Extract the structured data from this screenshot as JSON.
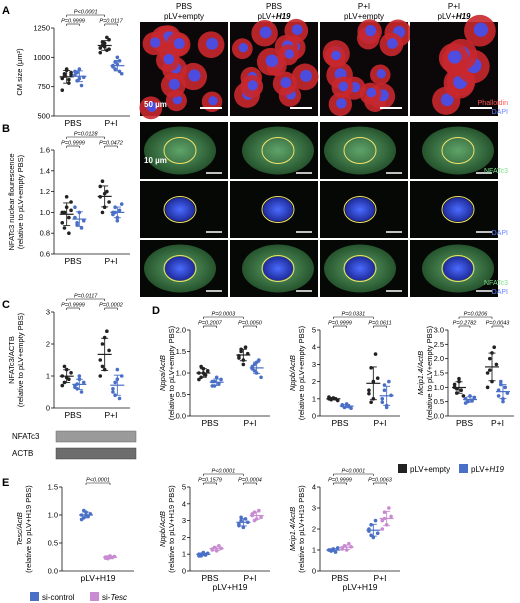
{
  "panel_letters": {
    "A": "A",
    "B": "B",
    "C": "C",
    "D": "D",
    "E": "E"
  },
  "micro_cols": [
    {
      "l1": "PBS",
      "l2": "pLV+empty",
      "l2i": ""
    },
    {
      "l1": "PBS",
      "l2": "pLV+",
      "l2i": "H19"
    },
    {
      "l1": "P+I",
      "l2": "pLV+empty",
      "l2i": ""
    },
    {
      "l1": "P+I",
      "l2": "pLV+",
      "l2i": "H19"
    }
  ],
  "micro_labels": {
    "scale_a": "50 µm",
    "scale_b": "10 µm",
    "phalloidin": "Phalloidin",
    "dapi": "DAPI",
    "nfatc3": "NFATc3"
  },
  "legend_D": [
    {
      "label": "pLV+empty",
      "italic": "",
      "color": "#222222"
    },
    {
      "label": "pLV+",
      "italic": "H19",
      "color": "#4a6fc6"
    }
  ],
  "legend_E": [
    {
      "label": "si-control",
      "italic": "",
      "color": "#4a6fc6"
    },
    {
      "label": "si-",
      "italic": "Tesc",
      "color": "#c98bd1"
    }
  ],
  "western": {
    "bands": [
      "NFATc3",
      "ACTB"
    ]
  },
  "colors": {
    "black": "#222222",
    "blue": "#4a6fc6",
    "purple": "#c98bd1",
    "actin_red": "#d8383c",
    "nfat_green": "#2f7a3a",
    "dapi_blue": "#2a3fbf"
  },
  "chart_data": [
    {
      "id": "A",
      "type": "scatter",
      "ylabel": "CM size (μm²)",
      "yticks": [
        500,
        750,
        1000,
        1250
      ],
      "ylim": [
        500,
        1250
      ],
      "groups": [
        "PBS",
        "P+I"
      ],
      "series": [
        {
          "color": "black",
          "values": [
            [
              820,
              860,
              900,
              780,
              870,
              720,
              840,
              890,
              810,
              850
            ],
            [
              1080,
              1100,
              1120,
              1060,
              1150,
              1040,
              1130,
              1090,
              1170,
              1070
            ]
          ]
        },
        {
          "color": "blue",
          "values": [
            [
              850,
              870,
              900,
              760,
              830,
              880,
              800,
              820
            ],
            [
              920,
              960,
              1000,
              880,
              860,
              930,
              900,
              940,
              970
            ]
          ]
        }
      ],
      "pvals": [
        {
          "text": "P<0.0001",
          "a": 0,
          "b": 2,
          "lev": 1
        },
        {
          "text": "P=0.9999",
          "a": 0,
          "b": 1,
          "lev": 0
        },
        {
          "text": "P=0.0117",
          "a": 2,
          "b": 3,
          "lev": 0
        }
      ]
    },
    {
      "id": "B",
      "type": "scatter",
      "ylabel": "NFATc3 nuclear flourescence",
      "ylabel2": "(relative to pLV+empty PBS)",
      "yticks": [
        0.6,
        0.8,
        1.0,
        1.2,
        1.4,
        1.6
      ],
      "ylim": [
        0.6,
        1.6
      ],
      "groups": [
        "PBS",
        "P+I"
      ],
      "series": [
        {
          "color": "black",
          "values": [
            [
              1.0,
              0.85,
              1.05,
              0.95,
              1.1,
              0.9,
              1.0,
              1.15,
              0.8,
              1.02
            ],
            [
              1.15,
              1.3,
              1.05,
              1.2,
              1.1,
              1.25,
              1.0,
              1.18
            ]
          ]
        },
        {
          "color": "blue",
          "values": [
            [
              0.95,
              0.9,
              1.0,
              0.85,
              0.92,
              1.05,
              0.88
            ],
            [
              1.0,
              1.05,
              0.95,
              1.02,
              1.08,
              0.98,
              1.0,
              0.92
            ]
          ]
        }
      ],
      "pvals": [
        {
          "text": "P=0.0128",
          "a": 0,
          "b": 2,
          "lev": 1
        },
        {
          "text": "P=0.9999",
          "a": 0,
          "b": 1,
          "lev": 0
        },
        {
          "text": "P=0.0472",
          "a": 2,
          "b": 3,
          "lev": 0
        }
      ]
    },
    {
      "id": "C",
      "type": "scatter",
      "ylabel": "NFATc3/ACTB",
      "ylabel2": "(relative to pLV+empty PBS)",
      "yticks": [
        0,
        1,
        2,
        3
      ],
      "ylim": [
        0,
        3
      ],
      "groups": [
        "PBS",
        "P+I"
      ],
      "series": [
        {
          "color": "black",
          "values": [
            [
              1.0,
              0.8,
              1.2,
              0.9,
              1.1,
              0.7,
              1.3,
              0.95
            ],
            [
              1.5,
              2.0,
              1.2,
              2.4,
              1.8,
              1.0,
              1.3,
              2.2
            ]
          ]
        },
        {
          "color": "blue",
          "values": [
            [
              0.7,
              0.6,
              0.9,
              0.5,
              0.8,
              0.65,
              0.75,
              1.0
            ],
            [
              0.5,
              0.8,
              1.2,
              0.3,
              1.0,
              0.6,
              0.4,
              0.9
            ]
          ]
        }
      ],
      "pvals": [
        {
          "text": "P=0.0117",
          "a": 0,
          "b": 2,
          "lev": 1
        },
        {
          "text": "P=0.9999",
          "a": 0,
          "b": 1,
          "lev": 0
        },
        {
          "text": "P=0.0002",
          "a": 2,
          "b": 3,
          "lev": 0
        }
      ]
    },
    {
      "id": "D1",
      "type": "scatter",
      "ylabel": "Nppa/ActB",
      "ylabel2": "(relative to pLV+empty PBS)",
      "yticks": [
        0.0,
        0.5,
        1.0,
        1.5,
        2.0
      ],
      "ylim": [
        0,
        2
      ],
      "groups": [
        "PBS",
        "P+I"
      ],
      "series": [
        {
          "color": "black",
          "values": [
            [
              1.0,
              0.9,
              1.1,
              0.95,
              1.05,
              0.85,
              1.15,
              1.0
            ],
            [
              1.4,
              1.5,
              1.3,
              1.6,
              1.45,
              1.35,
              1.55,
              1.2
            ]
          ]
        },
        {
          "color": "blue",
          "values": [
            [
              0.8,
              0.7,
              0.9,
              0.75,
              0.85,
              0.7,
              0.8
            ],
            [
              1.1,
              1.2,
              1.0,
              1.3,
              0.9,
              1.15,
              1.05,
              1.25
            ]
          ]
        }
      ],
      "pvals": [
        {
          "text": "P=0.0003",
          "a": 0,
          "b": 2,
          "lev": 1
        },
        {
          "text": "P=0.2007",
          "a": 0,
          "b": 1,
          "lev": 0
        },
        {
          "text": "P=0.0050",
          "a": 2,
          "b": 3,
          "lev": 0
        }
      ]
    },
    {
      "id": "D2",
      "type": "scatter",
      "ylabel": "Nppb/ActB",
      "ylabel2": "(relative to pLV+empty PBS)",
      "yticks": [
        0,
        1,
        2,
        3,
        4,
        5
      ],
      "ylim": [
        0,
        5
      ],
      "groups": [
        "PBS",
        "P+I"
      ],
      "series": [
        {
          "color": "black",
          "values": [
            [
              1.0,
              0.95,
              1.05,
              1.0,
              0.9,
              1.1,
              1.0
            ],
            [
              1.5,
              2.8,
              1.0,
              3.6,
              2.2,
              1.3,
              0.8,
              2.0
            ]
          ]
        },
        {
          "color": "blue",
          "values": [
            [
              0.6,
              0.5,
              0.7,
              0.55,
              0.45,
              0.65
            ],
            [
              1.0,
              1.5,
              0.6,
              2.0,
              1.2,
              0.8,
              1.8,
              0.5
            ]
          ]
        }
      ],
      "pvals": [
        {
          "text": "P=0.0331",
          "a": 0,
          "b": 2,
          "lev": 1
        },
        {
          "text": "P=0.9999",
          "a": 0,
          "b": 1,
          "lev": 0
        },
        {
          "text": "P=0.0611",
          "a": 2,
          "b": 3,
          "lev": 0
        }
      ]
    },
    {
      "id": "D3",
      "type": "scatter",
      "ylabel": "Mcip1.4/ActB",
      "ylabel2": "(relative to pLV+empty PBS)",
      "yticks": [
        0.0,
        0.5,
        1.0,
        1.5,
        2.0,
        2.5,
        3.0
      ],
      "ylim": [
        0,
        3
      ],
      "groups": [
        "PBS",
        "P+I"
      ],
      "series": [
        {
          "color": "black",
          "values": [
            [
              1.0,
              0.8,
              1.2,
              0.9,
              0.7,
              1.1,
              0.95,
              1.3
            ],
            [
              1.5,
              2.0,
              1.2,
              2.4,
              1.8,
              1.0,
              1.6,
              2.2
            ]
          ]
        },
        {
          "color": "blue",
          "values": [
            [
              0.6,
              0.5,
              0.7,
              0.55,
              0.65,
              0.45
            ],
            [
              0.9,
              1.2,
              0.6,
              1.0,
              0.8,
              0.7,
              1.1,
              0.5
            ]
          ]
        }
      ],
      "pvals": [
        {
          "text": "P=0.0206",
          "a": 0,
          "b": 2,
          "lev": 1
        },
        {
          "text": "P=0.2782",
          "a": 0,
          "b": 1,
          "lev": 0
        },
        {
          "text": "P=0.0043",
          "a": 2,
          "b": 3,
          "lev": 0
        }
      ]
    },
    {
      "id": "E1",
      "type": "scatter",
      "ylabel": "Tesc/ActB",
      "ylabel2": "(relative to pLV+H19 PBS)",
      "yticks": [
        0.0,
        0.5,
        1.0,
        1.5
      ],
      "ylim": [
        0,
        1.5
      ],
      "groups": [
        "pLV+H19"
      ],
      "series": [
        {
          "color": "blue",
          "values": [
            [
              1.0,
              0.95,
              1.05,
              0.98,
              1.02,
              0.92,
              1.08,
              1.0
            ]
          ]
        },
        {
          "color": "purple",
          "values": [
            [
              0.25,
              0.22,
              0.27,
              0.24,
              0.26,
              0.23,
              0.25,
              0.24
            ]
          ]
        }
      ],
      "pvals": [
        {
          "text": "P<0.0001",
          "a": 0,
          "b": 1,
          "lev": 0
        }
      ]
    },
    {
      "id": "E2",
      "type": "scatter",
      "ylabel": "Nppb/ActB",
      "ylabel2": "(relative to pLV+H19 PBS)",
      "yticks": [
        0,
        1,
        2,
        3,
        4,
        5
      ],
      "ylim": [
        0,
        5
      ],
      "groups": [
        "PBS",
        "P+I"
      ],
      "xsub": "pLV+H19",
      "series": [
        {
          "color": "blue",
          "values": [
            [
              1.0,
              0.9,
              1.1,
              0.95,
              1.05,
              0.9,
              1.0
            ],
            [
              2.8,
              3.0,
              2.6,
              3.1,
              2.9,
              2.7,
              3.2
            ]
          ]
        },
        {
          "color": "purple",
          "values": [
            [
              1.3,
              1.4,
              1.2,
              1.5,
              1.35,
              1.25
            ],
            [
              3.3,
              3.5,
              3.1,
              3.6,
              3.2,
              3.4,
              3.0
            ]
          ]
        }
      ],
      "pvals": [
        {
          "text": "P<0.0001",
          "a": 0,
          "b": 2,
          "lev": 1
        },
        {
          "text": "P=0.1579",
          "a": 0,
          "b": 1,
          "lev": 0
        },
        {
          "text": "P=0.0004",
          "a": 2,
          "b": 3,
          "lev": 0
        }
      ]
    },
    {
      "id": "E3",
      "type": "scatter",
      "ylabel": "Mcip1.4/ActB",
      "ylabel2": "(relative to pLV+H19 PBS)",
      "yticks": [
        0,
        1,
        2,
        3,
        4
      ],
      "ylim": [
        0,
        4
      ],
      "groups": [
        "PBS",
        "P+I"
      ],
      "xsub": "pLV+H19",
      "series": [
        {
          "color": "blue",
          "values": [
            [
              1.0,
              0.95,
              1.05,
              0.9,
              1.1,
              1.0,
              0.98
            ],
            [
              1.9,
              2.2,
              1.6,
              2.4,
              1.8,
              2.0,
              1.7
            ]
          ]
        },
        {
          "color": "purple",
          "values": [
            [
              1.1,
              1.2,
              1.0,
              1.3,
              1.15,
              1.05
            ],
            [
              2.4,
              2.8,
              2.2,
              3.0,
              2.6,
              2.0,
              2.5
            ]
          ]
        }
      ],
      "pvals": [
        {
          "text": "P<0.0001",
          "a": 0,
          "b": 2,
          "lev": 1
        },
        {
          "text": "P=0.9999",
          "a": 0,
          "b": 1,
          "lev": 0
        },
        {
          "text": "P=0.0063",
          "a": 2,
          "b": 3,
          "lev": 0
        }
      ]
    }
  ]
}
